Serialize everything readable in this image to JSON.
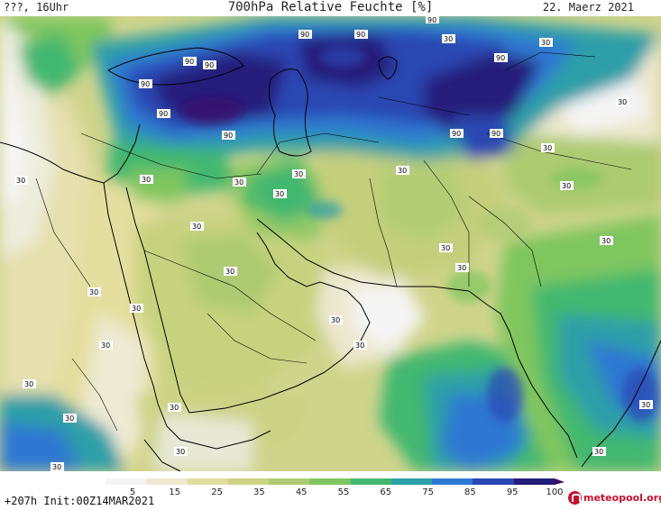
{
  "header": {
    "left": "???, 16Uhr",
    "title": "700hPa Relative Feuchte [%]",
    "date": "22. Maerz 2021"
  },
  "map": {
    "region": "Middle East / Arabian Peninsula / Iran / Pakistan / NW India",
    "contour_labels": [
      "90",
      "90",
      "90",
      "90",
      "90",
      "90",
      "90",
      "90",
      "90",
      "90",
      "90",
      "30",
      "30",
      "30",
      "30",
      "30",
      "30",
      "30",
      "30",
      "30",
      "30",
      "30",
      "30",
      "30",
      "30",
      "30",
      "30",
      "30",
      "30",
      "30",
      "30",
      "30",
      "30",
      "30",
      "30",
      "30",
      "30",
      "30",
      "30"
    ]
  },
  "legend": {
    "ticks": [
      "5",
      "15",
      "25",
      "35",
      "45",
      "55",
      "65",
      "75",
      "85",
      "95",
      "100"
    ],
    "colors": [
      "#f4f4f4",
      "#ede8cf",
      "#e3dc9f",
      "#ccd384",
      "#aecb72",
      "#7fc65e",
      "#42b86f",
      "#2e9fa8",
      "#2f78d2",
      "#2947b2",
      "#251d7a",
      "#3a0a6a"
    ]
  },
  "footer": {
    "init": "+207h Init:00Z14MAR2021",
    "brand": "meteopool.org"
  }
}
